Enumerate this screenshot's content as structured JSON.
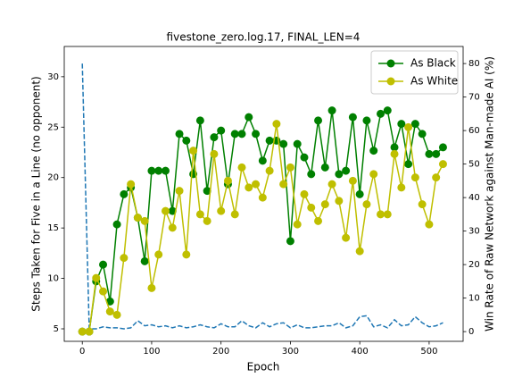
{
  "chart_data": {
    "type": "line",
    "title": "fivestone_zero.log.17, FINAL_LEN=4",
    "x_label": "Epoch",
    "y_label": "Steps Taken for Five in a Line (no opponent)",
    "y2_label": "Win Rate of Raw Network against Man-made AI (%)",
    "x": [
      0,
      10,
      20,
      30,
      40,
      50,
      60,
      70,
      80,
      90,
      100,
      110,
      120,
      130,
      140,
      150,
      160,
      170,
      180,
      190,
      200,
      210,
      220,
      230,
      240,
      250,
      260,
      270,
      280,
      290,
      300,
      310,
      320,
      330,
      340,
      350,
      360,
      370,
      380,
      390,
      400,
      410,
      420,
      430,
      440,
      450,
      460,
      470,
      480,
      490,
      500,
      510,
      520
    ],
    "series": [
      {
        "name": null,
        "color": "#1f77b4",
        "axis": "y",
        "dashed": true,
        "markers": false,
        "values": [
          31.3,
          5.0,
          5.0,
          5.2,
          5.1,
          5.1,
          5.0,
          5.1,
          5.8,
          5.3,
          5.4,
          5.2,
          5.3,
          5.1,
          5.3,
          5.1,
          5.2,
          5.4,
          5.2,
          5.1,
          5.5,
          5.2,
          5.2,
          5.8,
          5.3,
          5.1,
          5.6,
          5.2,
          5.5,
          5.6,
          5.1,
          5.4,
          5.1,
          5.1,
          5.2,
          5.3,
          5.3,
          5.6,
          5.1,
          5.3,
          6.2,
          6.3,
          5.2,
          5.4,
          5.1,
          5.9,
          5.3,
          5.4,
          6.2,
          5.6,
          5.2,
          5.3,
          5.6
        ]
      },
      {
        "name": "As Black",
        "color": "#008000",
        "axis": "y2",
        "dashed": false,
        "markers": true,
        "values": [
          0,
          0,
          15,
          20,
          9,
          32,
          41,
          43,
          34,
          21,
          48,
          48,
          48,
          36,
          59,
          57,
          47,
          63,
          42,
          58,
          60,
          44,
          59,
          59,
          64,
          59,
          51,
          57,
          57,
          56,
          27,
          56,
          52,
          47,
          63,
          49,
          66,
          47,
          48,
          64,
          41,
          63,
          54,
          65,
          66,
          55,
          62,
          50,
          62,
          59,
          53,
          53,
          55
        ]
      },
      {
        "name": "As White",
        "color": "#bfbf00",
        "axis": "y2",
        "dashed": false,
        "markers": true,
        "values": [
          0,
          0,
          16,
          12,
          6,
          5,
          22,
          44,
          34,
          33,
          13,
          23,
          36,
          31,
          42,
          23,
          54,
          35,
          33,
          53,
          36,
          45,
          35,
          49,
          43,
          44,
          40,
          48,
          62,
          44,
          49,
          32,
          41,
          37,
          33,
          38,
          44,
          39,
          28,
          45,
          24,
          38,
          47,
          35,
          35,
          53,
          43,
          61,
          46,
          38,
          32,
          46,
          50
        ]
      }
    ],
    "xlim": [
      -26,
      549
    ],
    "ylim": [
      3.76,
      33.0
    ],
    "y2lim": [
      -2.9,
      85.1
    ],
    "xticks": [
      0,
      100,
      200,
      300,
      400,
      500
    ],
    "yticks": [
      5,
      10,
      15,
      20,
      25,
      30
    ],
    "y2ticks": [
      0,
      10,
      20,
      30,
      40,
      50,
      60,
      70,
      80
    ],
    "legend": "upper right",
    "grid": false
  }
}
